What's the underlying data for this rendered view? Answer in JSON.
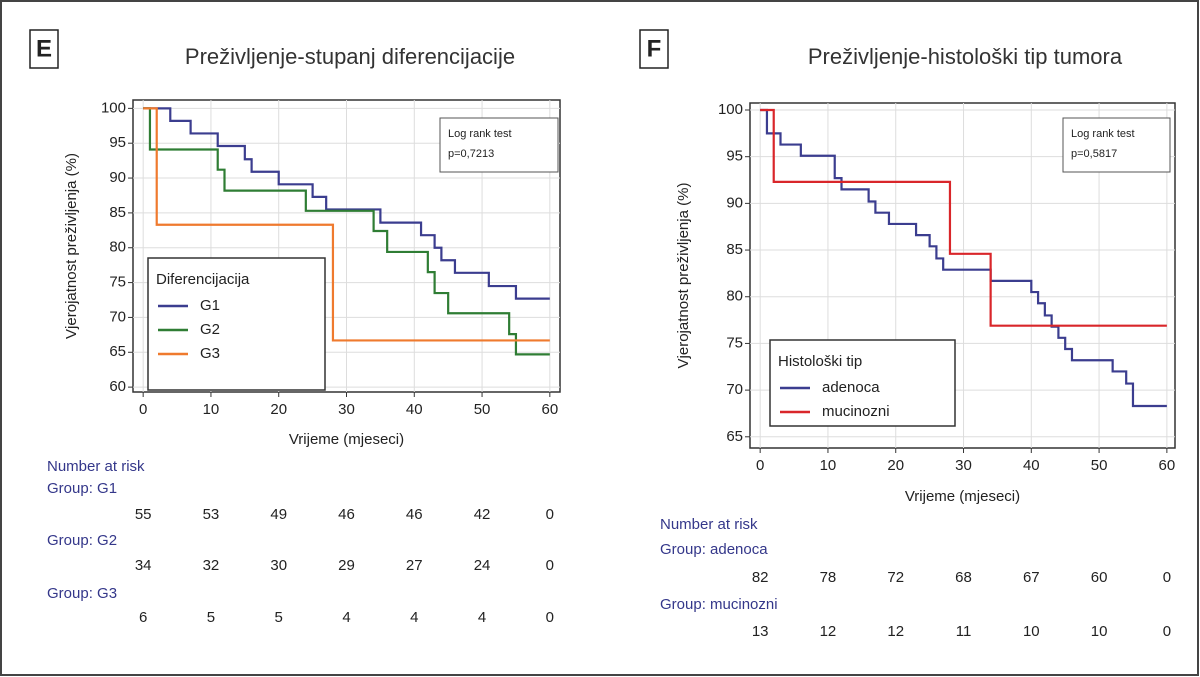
{
  "chart_data": [
    {
      "type": "line",
      "step": true,
      "panel": "E",
      "title": "Preživljenje-stupanj diferencijacije",
      "ylabel": "Vjerojatnost preživljenja (%)",
      "xlabel": "Vrijeme (mjeseci)",
      "annotation": [
        "Log rank test",
        "p=0,7213"
      ],
      "legend_title": "Diferencijacija",
      "legend": "lower left",
      "xlim": [
        -1.5,
        61.5
      ],
      "xticks": [
        0,
        10,
        20,
        30,
        40,
        50,
        60
      ],
      "ylim": [
        59.3,
        101.2
      ],
      "yticks": [
        60,
        65,
        70,
        75,
        80,
        85,
        90,
        95,
        100
      ],
      "grid": true,
      "series": [
        {
          "name": "G1",
          "color": "#3b3d8f",
          "x": [
            0,
            4,
            7,
            11,
            15,
            16,
            20,
            25,
            27,
            35,
            41,
            43,
            44,
            46,
            51,
            55,
            60
          ],
          "values": [
            100,
            98.2,
            96.4,
            94.6,
            92.7,
            90.9,
            89.1,
            87.3,
            85.5,
            83.6,
            81.8,
            80,
            78.2,
            76.4,
            74.5,
            72.7,
            72.7
          ]
        },
        {
          "name": "G2",
          "color": "#2f7d34",
          "x": [
            0,
            1,
            11,
            12,
            24,
            34,
            36,
            42,
            43,
            45,
            54,
            55,
            60
          ],
          "values": [
            100,
            94.1,
            91.2,
            88.2,
            85.3,
            82.4,
            79.4,
            76.5,
            73.5,
            70.6,
            67.6,
            64.7,
            64.7
          ]
        },
        {
          "name": "G3",
          "color": "#ef7a2e",
          "x": [
            0,
            2,
            28,
            60
          ],
          "values": [
            100,
            83.3,
            66.7,
            66.7
          ]
        }
      ],
      "risk_table": {
        "title": "Number at risk",
        "groups": [
          {
            "label": "Group: G1",
            "counts": [
              55,
              53,
              49,
              46,
              46,
              42,
              0
            ]
          },
          {
            "label": "Group: G2",
            "counts": [
              34,
              32,
              30,
              29,
              27,
              24,
              0
            ]
          },
          {
            "label": "Group: G3",
            "counts": [
              6,
              5,
              5,
              4,
              4,
              4,
              0
            ]
          }
        ]
      }
    },
    {
      "type": "line",
      "step": true,
      "panel": "F",
      "title": "Preživljenje-histološki tip tumora",
      "ylabel": "Vjerojatnost preživljenja (%)",
      "xlabel": "Vrijeme  (mjeseci)",
      "annotation": [
        "Log rank test",
        "p=0,5817"
      ],
      "legend_title": "Histološki tip",
      "legend": "lower left",
      "xlim": [
        -1.5,
        61.2
      ],
      "xticks": [
        0,
        10,
        20,
        30,
        40,
        50,
        60
      ],
      "ylim": [
        63.8,
        100.75
      ],
      "yticks": [
        65,
        70,
        75,
        80,
        85,
        90,
        95,
        100
      ],
      "grid": true,
      "series": [
        {
          "name": "adenoca",
          "color": "#3b3d8f",
          "x": [
            0,
            1,
            3,
            6,
            11,
            12,
            16,
            17,
            19,
            23,
            25,
            26,
            27,
            34,
            40,
            41,
            42,
            43,
            44,
            45,
            46,
            52,
            54,
            55,
            60
          ],
          "values": [
            100,
            97.5,
            96.3,
            95.1,
            92.7,
            91.5,
            90.2,
            89,
            87.8,
            86.6,
            85.4,
            84.1,
            82.9,
            81.7,
            80.5,
            79.3,
            78,
            76.8,
            75.6,
            74.4,
            73.2,
            72,
            70.7,
            68.3,
            68.3
          ]
        },
        {
          "name": "mucinozni",
          "color": "#d9262a",
          "x": [
            0,
            2,
            28,
            34,
            60
          ],
          "values": [
            100,
            92.3,
            84.6,
            76.9,
            76.9
          ]
        }
      ],
      "risk_table": {
        "title": "Number at risk",
        "groups": [
          {
            "label": "Group: adenoca",
            "counts": [
              82,
              78,
              72,
              68,
              67,
              60,
              0
            ]
          },
          {
            "label": "Group: mucinozni",
            "counts": [
              13,
              12,
              12,
              11,
              10,
              10,
              0
            ]
          }
        ]
      }
    }
  ]
}
